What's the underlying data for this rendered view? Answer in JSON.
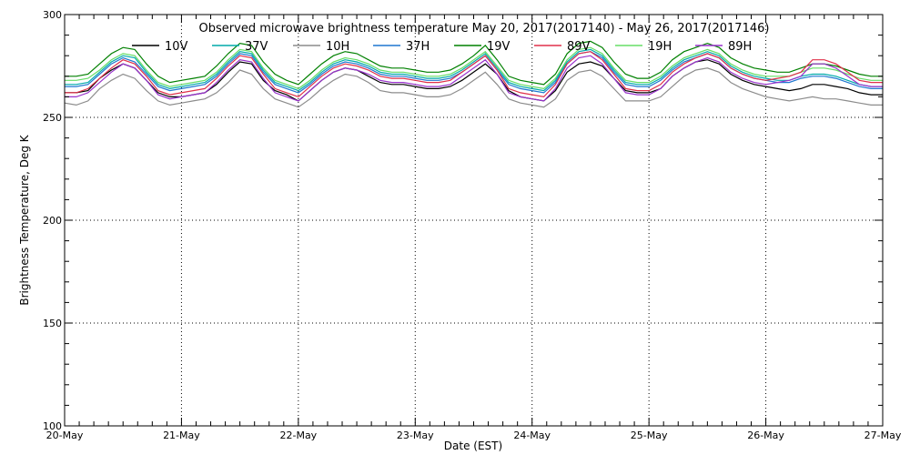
{
  "chart_data": {
    "type": "line",
    "title": "Observed microwave brightness temperature May 20, 2017(2017140) - May 26, 2017(2017146)",
    "xlabel": "Date (EST)",
    "ylabel": "Brightness Temperature, Deg K",
    "xlim": [
      0,
      7
    ],
    "ylim": [
      100,
      300
    ],
    "yticks": [
      100,
      150,
      200,
      250,
      300
    ],
    "xticks": [
      {
        "x": 0,
        "label": "20-May"
      },
      {
        "x": 1,
        "label": "21-May"
      },
      {
        "x": 2,
        "label": "22-May"
      },
      {
        "x": 3,
        "label": "23-May"
      },
      {
        "x": 4,
        "label": "24-May"
      },
      {
        "x": 5,
        "label": "25-May"
      },
      {
        "x": 6,
        "label": "26-May"
      },
      {
        "x": 7,
        "label": "27-May"
      }
    ],
    "grid": true,
    "legend_position": "top",
    "x": [
      0.0,
      0.1,
      0.2,
      0.3,
      0.4,
      0.5,
      0.6,
      0.7,
      0.8,
      0.9,
      1.0,
      1.1,
      1.2,
      1.3,
      1.4,
      1.5,
      1.6,
      1.7,
      1.8,
      1.9,
      2.0,
      2.1,
      2.2,
      2.3,
      2.4,
      2.5,
      2.6,
      2.7,
      2.8,
      2.9,
      3.0,
      3.1,
      3.2,
      3.3,
      3.4,
      3.5,
      3.6,
      3.7,
      3.8,
      3.9,
      4.0,
      4.1,
      4.2,
      4.3,
      4.4,
      4.5,
      4.6,
      4.7,
      4.8,
      4.9,
      5.0,
      5.1,
      5.2,
      5.3,
      5.4,
      5.5,
      5.6,
      5.7,
      5.8,
      5.9,
      6.0,
      6.1,
      6.2,
      6.3,
      6.4,
      6.5,
      6.6,
      6.7,
      6.8,
      6.9,
      7.0
    ],
    "series": [
      {
        "name": "10V",
        "color": "#000000",
        "values": [
          262,
          262,
          263,
          269,
          273,
          276,
          274,
          268,
          262,
          260,
          260,
          261,
          262,
          266,
          272,
          277,
          276,
          268,
          263,
          261,
          258,
          263,
          268,
          272,
          274,
          273,
          270,
          267,
          266,
          266,
          265,
          264,
          264,
          265,
          268,
          272,
          276,
          271,
          263,
          260,
          259,
          258,
          263,
          272,
          276,
          277,
          275,
          269,
          263,
          262,
          262,
          264,
          270,
          274,
          277,
          278,
          276,
          271,
          268,
          266,
          265,
          264,
          263,
          264,
          266,
          266,
          265,
          264,
          262,
          261,
          261
        ]
      },
      {
        "name": "10H",
        "color": "#8c8c8c",
        "values": [
          257,
          256,
          258,
          264,
          268,
          271,
          269,
          263,
          258,
          256,
          257,
          258,
          259,
          262,
          267,
          273,
          271,
          264,
          259,
          257,
          255,
          259,
          264,
          268,
          271,
          270,
          267,
          263,
          262,
          262,
          261,
          260,
          260,
          261,
          264,
          268,
          272,
          266,
          259,
          257,
          256,
          255,
          259,
          268,
          272,
          273,
          270,
          264,
          258,
          258,
          258,
          260,
          265,
          270,
          273,
          274,
          272,
          267,
          264,
          262,
          260,
          259,
          258,
          259,
          260,
          259,
          259,
          258,
          257,
          256,
          256
        ]
      },
      {
        "name": "19V",
        "color": "#008000",
        "values": [
          270,
          270,
          271,
          276,
          281,
          284,
          283,
          276,
          270,
          267,
          268,
          269,
          270,
          275,
          281,
          286,
          285,
          277,
          271,
          268,
          266,
          271,
          276,
          280,
          282,
          281,
          278,
          275,
          274,
          274,
          273,
          272,
          272,
          273,
          276,
          280,
          285,
          278,
          270,
          268,
          267,
          266,
          271,
          281,
          286,
          287,
          284,
          277,
          271,
          269,
          269,
          272,
          278,
          282,
          284,
          286,
          284,
          279,
          276,
          274,
          273,
          272,
          272,
          274,
          276,
          276,
          275,
          273,
          271,
          270,
          270
        ]
      },
      {
        "name": "19H",
        "color": "#66dd66",
        "values": [
          268,
          268,
          269,
          273,
          278,
          281,
          280,
          273,
          267,
          265,
          266,
          267,
          268,
          272,
          278,
          283,
          282,
          274,
          268,
          266,
          264,
          268,
          273,
          277,
          279,
          278,
          276,
          273,
          272,
          272,
          271,
          270,
          270,
          271,
          274,
          278,
          282,
          275,
          268,
          266,
          265,
          264,
          269,
          278,
          283,
          284,
          281,
          274,
          268,
          267,
          267,
          270,
          275,
          279,
          281,
          283,
          281,
          276,
          273,
          271,
          270,
          270,
          270,
          272,
          274,
          274,
          273,
          271,
          269,
          268,
          268
        ]
      },
      {
        "name": "37V",
        "color": "#00aaaa",
        "values": [
          266,
          266,
          267,
          272,
          277,
          280,
          279,
          272,
          266,
          264,
          265,
          266,
          267,
          271,
          277,
          282,
          281,
          273,
          267,
          265,
          263,
          267,
          272,
          276,
          278,
          277,
          275,
          272,
          271,
          271,
          270,
          269,
          269,
          270,
          273,
          277,
          281,
          274,
          267,
          265,
          264,
          263,
          268,
          277,
          282,
          283,
          280,
          273,
          267,
          266,
          266,
          269,
          274,
          278,
          280,
          282,
          280,
          275,
          272,
          270,
          269,
          268,
          268,
          270,
          271,
          271,
          270,
          268,
          266,
          265,
          265
        ]
      },
      {
        "name": "37H",
        "color": "#1f77d0",
        "values": [
          265,
          265,
          266,
          271,
          276,
          279,
          277,
          271,
          265,
          263,
          264,
          265,
          266,
          270,
          276,
          281,
          280,
          272,
          266,
          264,
          262,
          266,
          271,
          275,
          277,
          276,
          274,
          271,
          270,
          270,
          269,
          268,
          268,
          269,
          272,
          276,
          280,
          273,
          266,
          264,
          263,
          262,
          267,
          276,
          281,
          282,
          279,
          272,
          266,
          265,
          265,
          268,
          273,
          277,
          279,
          281,
          279,
          274,
          271,
          269,
          268,
          267,
          267,
          269,
          270,
          270,
          269,
          267,
          265,
          264,
          264
        ]
      },
      {
        "name": "89V",
        "color": "#e0304a",
        "values": [
          262,
          262,
          264,
          269,
          274,
          278,
          276,
          270,
          263,
          261,
          262,
          263,
          264,
          269,
          275,
          280,
          279,
          271,
          264,
          262,
          260,
          265,
          270,
          274,
          276,
          275,
          273,
          270,
          269,
          269,
          268,
          267,
          267,
          268,
          272,
          276,
          280,
          273,
          264,
          262,
          261,
          260,
          266,
          276,
          281,
          282,
          278,
          271,
          264,
          263,
          263,
          266,
          272,
          276,
          279,
          281,
          279,
          274,
          271,
          269,
          268,
          269,
          270,
          272,
          278,
          278,
          276,
          272,
          268,
          267,
          267
        ]
      },
      {
        "name": "89H",
        "color": "#9932cc",
        "values": [
          260,
          260,
          262,
          267,
          272,
          276,
          274,
          268,
          261,
          259,
          260,
          261,
          262,
          267,
          273,
          278,
          277,
          269,
          262,
          260,
          258,
          263,
          268,
          272,
          274,
          273,
          271,
          268,
          267,
          267,
          266,
          265,
          265,
          266,
          270,
          274,
          278,
          271,
          262,
          260,
          259,
          258,
          264,
          274,
          279,
          280,
          276,
          269,
          262,
          261,
          261,
          264,
          270,
          274,
          277,
          279,
          277,
          272,
          269,
          267,
          266,
          267,
          268,
          270,
          276,
          276,
          274,
          270,
          266,
          265,
          265
        ]
      }
    ]
  }
}
